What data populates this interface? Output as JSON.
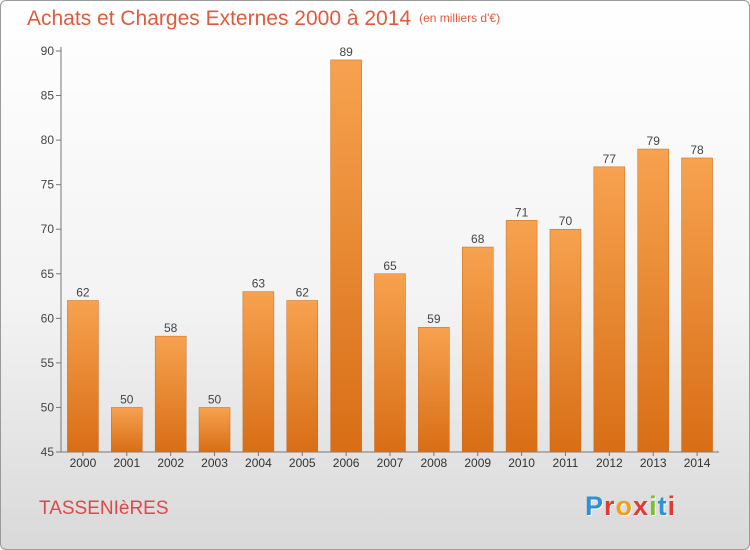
{
  "chart_data": {
    "type": "bar",
    "title": "Achats et Charges Externes 2000 à 2014",
    "subtitle": "(en milliers d'€)",
    "categories": [
      "2000",
      "2001",
      "2002",
      "2003",
      "2004",
      "2005",
      "2006",
      "2007",
      "2008",
      "2009",
      "2010",
      "2011",
      "2012",
      "2013",
      "2014"
    ],
    "values": [
      62,
      50,
      58,
      50,
      63,
      62,
      89,
      65,
      59,
      68,
      71,
      70,
      77,
      79,
      78
    ],
    "ylim": [
      45,
      90
    ],
    "yticks": [
      45,
      50,
      55,
      60,
      65,
      70,
      75,
      80,
      85,
      90
    ],
    "grid": false,
    "colors": {
      "bar_light": "#f7a24f",
      "bar_dark": "#d86e16",
      "title": "#e25a3b"
    }
  },
  "footer": {
    "place": "TASSENIèRES",
    "logo_letters": [
      "P",
      "r",
      "o",
      "x",
      "i",
      "t",
      "i"
    ],
    "logo_colors": [
      "#2f8fd8",
      "#e23a2e",
      "#f0a020",
      "#e23a2e",
      "#7bbf2a",
      "#2f8fd8",
      "#e23a2e"
    ]
  }
}
